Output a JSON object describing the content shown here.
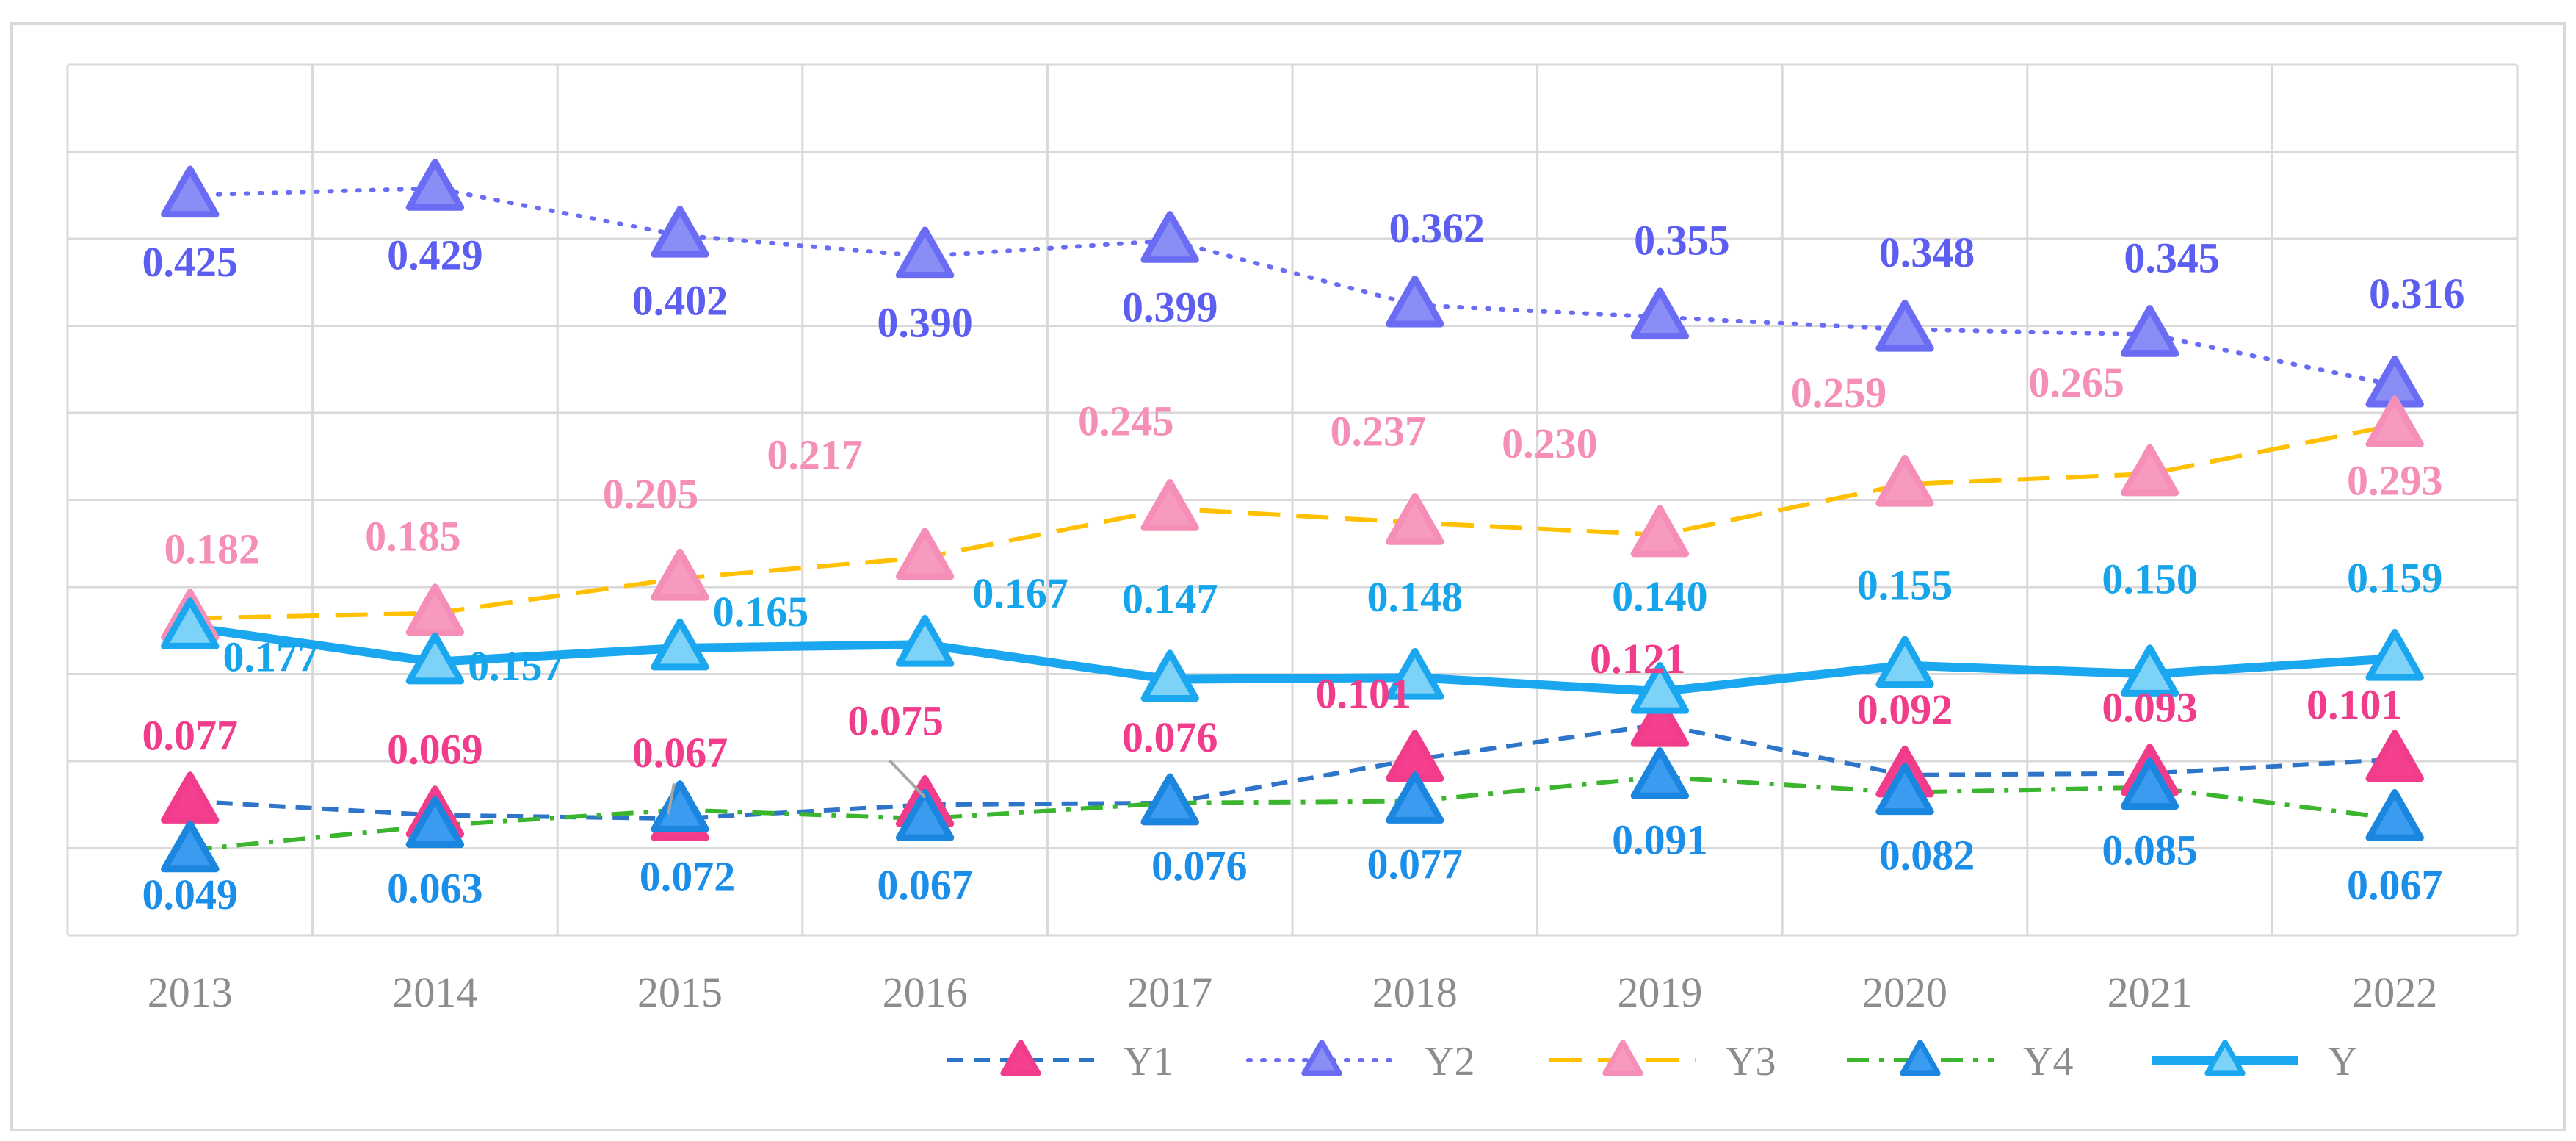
{
  "chart_data": {
    "type": "line",
    "title": "",
    "xlabel": "",
    "ylabel": "",
    "ylim": [
      0,
      0.5
    ],
    "grid": true,
    "legend_position": "bottom-right",
    "categories": [
      "2013",
      "2014",
      "2015",
      "2016",
      "2017",
      "2018",
      "2019",
      "2020",
      "2021",
      "2022"
    ],
    "series": [
      {
        "name": "Y1",
        "line_color": "#2e75c9",
        "marker_color": "#f5408f",
        "label_color": "#f03c8a",
        "dash": "dash",
        "values": [
          0.077,
          0.069,
          0.067,
          0.075,
          0.076,
          0.101,
          0.121,
          0.092,
          0.093,
          0.101
        ],
        "labels": [
          "0.077",
          "0.069",
          "0.067",
          "0.075",
          "0.076",
          "0.101",
          "0.121",
          "0.092",
          "0.093",
          "0.101"
        ]
      },
      {
        "name": "Y2",
        "line_color": "#6a6cf4",
        "marker_color": "#8b8df6",
        "label_color": "#5b5ef0",
        "dash": "dot",
        "values": [
          0.425,
          0.429,
          0.402,
          0.39,
          0.399,
          0.362,
          0.355,
          0.348,
          0.345,
          0.316
        ],
        "labels": [
          "0.425",
          "0.429",
          "0.402",
          "0.390",
          "0.399",
          "0.362",
          "0.355",
          "0.348",
          "0.345",
          "0.316"
        ]
      },
      {
        "name": "Y3",
        "line_color": "#ffc000",
        "marker_color": "#f79ac0",
        "label_color": "#f58fb7",
        "dash": "longdash",
        "values": [
          0.182,
          0.185,
          0.205,
          0.217,
          0.245,
          0.237,
          0.23,
          0.259,
          0.265,
          0.293
        ],
        "labels": [
          "0.182",
          "0.185",
          "0.205",
          "0.217",
          "0.245",
          "0.237",
          "0.230",
          "0.259",
          "0.265",
          "0.293"
        ]
      },
      {
        "name": "Y4",
        "line_color": "#3cb52e",
        "marker_color": "#3a9bf0",
        "label_color": "#1a8ee8",
        "dash": "dashdot",
        "values": [
          0.049,
          0.063,
          0.072,
          0.067,
          0.076,
          0.077,
          0.091,
          0.082,
          0.085,
          0.067
        ],
        "labels": [
          "0.049",
          "0.063",
          "0.072",
          "0.067",
          "0.076",
          "0.077",
          "0.091",
          "0.082",
          "0.085",
          "0.067"
        ]
      },
      {
        "name": "Y",
        "line_color": "#1aa7f0",
        "marker_color": "#7dd3f7",
        "label_color": "#16a4ea",
        "dash": "solid",
        "values": [
          0.177,
          0.157,
          0.165,
          0.167,
          0.147,
          0.148,
          0.14,
          0.155,
          0.15,
          0.159
        ],
        "labels": [
          "0.177",
          "0.157",
          "0.165",
          "0.167",
          "0.147",
          "0.148",
          "0.140",
          "0.155",
          "0.150",
          "0.159"
        ]
      }
    ]
  }
}
